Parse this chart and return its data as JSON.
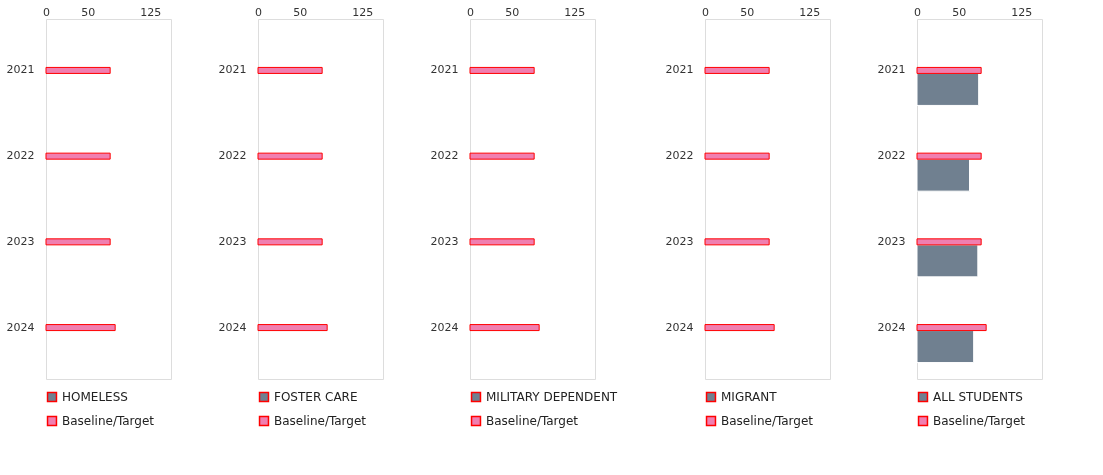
{
  "chart_data": [
    {
      "type": "bar",
      "orientation": "horizontal",
      "categories": [
        "2021",
        "2022",
        "2023",
        "2024"
      ],
      "xlim": [
        0,
        150
      ],
      "xticks": [
        0,
        50,
        125
      ],
      "legend": "bottom",
      "grid": false,
      "series": [
        {
          "name": "HOMELESS",
          "color": "#708090",
          "values": [
            null,
            null,
            null,
            null
          ]
        },
        {
          "name": "Baseline/Target",
          "color": "#f07fb0",
          "values": [
            77,
            77,
            77,
            83
          ]
        }
      ]
    },
    {
      "type": "bar",
      "orientation": "horizontal",
      "categories": [
        "2021",
        "2022",
        "2023",
        "2024"
      ],
      "xlim": [
        0,
        150
      ],
      "xticks": [
        0,
        50,
        125
      ],
      "legend": "bottom",
      "grid": false,
      "series": [
        {
          "name": "FOSTER CARE",
          "color": "#708090",
          "values": [
            null,
            null,
            null,
            null
          ]
        },
        {
          "name": "Baseline/Target",
          "color": "#f07fb0",
          "values": [
            77,
            77,
            77,
            83
          ]
        }
      ]
    },
    {
      "type": "bar",
      "orientation": "horizontal",
      "categories": [
        "2021",
        "2022",
        "2023",
        "2024"
      ],
      "xlim": [
        0,
        150
      ],
      "xticks": [
        0,
        50,
        125
      ],
      "legend": "bottom",
      "grid": false,
      "series": [
        {
          "name": "MILITARY DEPENDENT",
          "color": "#708090",
          "values": [
            null,
            null,
            null,
            null
          ]
        },
        {
          "name": "Baseline/Target",
          "color": "#f07fb0",
          "values": [
            77,
            77,
            77,
            83
          ]
        }
      ]
    },
    {
      "type": "bar",
      "orientation": "horizontal",
      "categories": [
        "2021",
        "2022",
        "2023",
        "2024"
      ],
      "xlim": [
        0,
        150
      ],
      "xticks": [
        0,
        50,
        125
      ],
      "legend": "bottom",
      "grid": false,
      "series": [
        {
          "name": "MIGRANT",
          "color": "#708090",
          "values": [
            null,
            null,
            null,
            null
          ]
        },
        {
          "name": "Baseline/Target",
          "color": "#f07fb0",
          "values": [
            77,
            77,
            77,
            83
          ]
        }
      ]
    },
    {
      "type": "bar",
      "orientation": "horizontal",
      "categories": [
        "2021",
        "2022",
        "2023",
        "2024"
      ],
      "xlim": [
        0,
        150
      ],
      "xticks": [
        0,
        50,
        125
      ],
      "legend": "bottom",
      "grid": false,
      "series": [
        {
          "name": "ALL STUDENTS",
          "color": "#708090",
          "values": [
            74,
            63,
            73,
            68
          ]
        },
        {
          "name": "Baseline/Target",
          "color": "#f07fb0",
          "values": [
            77,
            77,
            77,
            83
          ]
        }
      ]
    }
  ]
}
